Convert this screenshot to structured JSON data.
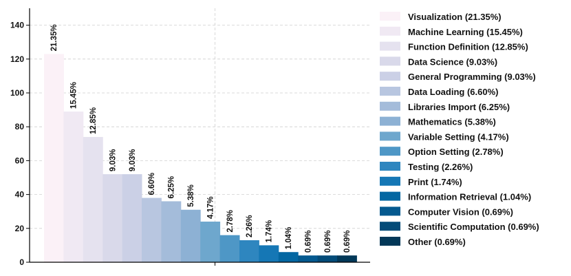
{
  "chart_data": {
    "type": "bar",
    "title": "",
    "xlabel": "",
    "ylabel": "",
    "ylim": [
      0,
      150
    ],
    "yticks": [
      0,
      20,
      40,
      60,
      80,
      100,
      120,
      140
    ],
    "grid": true,
    "legend_position": "right",
    "categories": [
      "Visualization",
      "Machine Learning",
      "Function Definition",
      "Data Science",
      "General Programming",
      "Data Loading",
      "Libraries Import",
      "Mathematics",
      "Variable Setting",
      "Option Setting",
      "Testing",
      "Print",
      "Information Retrieval",
      "Computer Vision",
      "Scientific Computation",
      "Other"
    ],
    "values": [
      123,
      89,
      74,
      52,
      52,
      38,
      36,
      31,
      24,
      16,
      13,
      10,
      6,
      4,
      4,
      4
    ],
    "percent_labels": [
      "21.35%",
      "15.45%",
      "12.85%",
      "9.03%",
      "9.03%",
      "6.60%",
      "6.25%",
      "5.38%",
      "4.17%",
      "2.78%",
      "2.26%",
      "1.74%",
      "1.04%",
      "0.69%",
      "0.69%",
      "0.69%"
    ],
    "legend_labels": [
      "Visualization (21.35%)",
      "Machine Learning (15.45%)",
      "Function Definition (12.85%)",
      "Data Science (9.03%)",
      "General Programming (9.03%)",
      "Data Loading (6.60%)",
      "Libraries Import (6.25%)",
      "Mathematics (5.38%)",
      "Variable Setting (4.17%)",
      "Option Setting (2.78%)",
      "Testing (2.26%)",
      "Print (1.74%)",
      "Information Retrieval (1.04%)",
      "Computer Vision (0.69%)",
      "Scientific Computation (0.69%)",
      "Other (0.69%)"
    ],
    "colors": [
      "#fbf1f7",
      "#f0e9f3",
      "#e5e2ef",
      "#d9d9ea",
      "#cbd0e6",
      "#b8c6e0",
      "#a4bcda",
      "#8db1d4",
      "#6ea7cd",
      "#4e97c6",
      "#2e86bf",
      "#1577b5",
      "#0467a2",
      "#04598f",
      "#034b78",
      "#023858"
    ]
  }
}
